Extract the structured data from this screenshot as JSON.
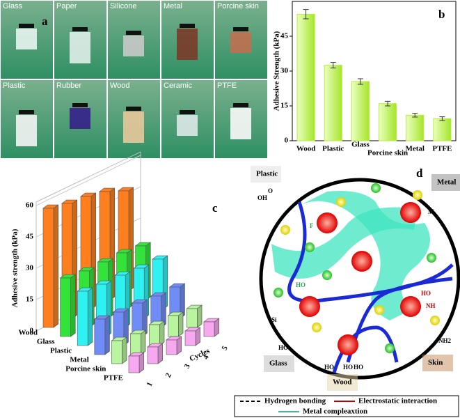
{
  "photos": {
    "panel_label": "a",
    "labels": [
      "Glass",
      "Paper",
      "Silicone",
      "Metal",
      "Porcine skin",
      "Plastic",
      "Rubber",
      "Wood",
      "Ceramic",
      "PTFE"
    ]
  },
  "chart_data": [
    {
      "type": "bar",
      "panel_label": "b",
      "y_label": "Adhesive Strength (kPa)",
      "categories": [
        "Wood",
        "Plastic",
        "Glass",
        "Porcine skin",
        "Metal",
        "PTFE"
      ],
      "values": [
        54.5,
        32.5,
        25.5,
        16,
        11,
        9.5
      ],
      "errors": [
        2,
        1.2,
        1.2,
        1,
        0.8,
        0.8
      ],
      "color": "#b9ee3c",
      "ylim": [
        0,
        60
      ],
      "yticks": [
        0,
        15,
        30,
        45
      ]
    },
    {
      "type": "bar3d",
      "panel_label": "c",
      "y_label": "Adhesive strength (kPa)",
      "x_label": "Cycles",
      "x": [
        1,
        2,
        3,
        4,
        5
      ],
      "series": [
        {
          "name": "Wood",
          "color": "#ff7f1e",
          "values": [
            57,
            55,
            54,
            52,
            48
          ]
        },
        {
          "name": "Glass",
          "color": "#33e33a",
          "values": [
            28,
            27,
            27,
            27,
            26
          ]
        },
        {
          "name": "Plastic",
          "color": "#2ef2f2",
          "values": [
            26,
            25,
            25,
            24,
            24
          ]
        },
        {
          "name": "Metal",
          "color": "#6f8cf7",
          "values": [
            17,
            16,
            16,
            15,
            15
          ]
        },
        {
          "name": "Porcine skin",
          "color": "#b8f59e",
          "values": [
            11,
            10,
            10,
            10,
            9
          ]
        },
        {
          "name": "PTFE",
          "color": "#f7a8f0",
          "values": [
            8,
            8,
            7,
            7,
            7
          ]
        }
      ],
      "zlim": [
        0,
        60
      ],
      "zticks": [
        0,
        15,
        30,
        45,
        60
      ]
    }
  ],
  "diagram": {
    "panel_label": "d",
    "surfaces": [
      "Plastic",
      "Metal",
      "Glass",
      "Wood",
      "Skin"
    ],
    "chem": [
      "OH",
      "O",
      "M",
      "F",
      "HO",
      "Si",
      "HO",
      "NH",
      "HO",
      "HO",
      "HO",
      "HO",
      "NH2"
    ],
    "legend": [
      "Hydrogen bonding",
      "Electrostatic interaction",
      "Metal compleaxtion"
    ]
  }
}
